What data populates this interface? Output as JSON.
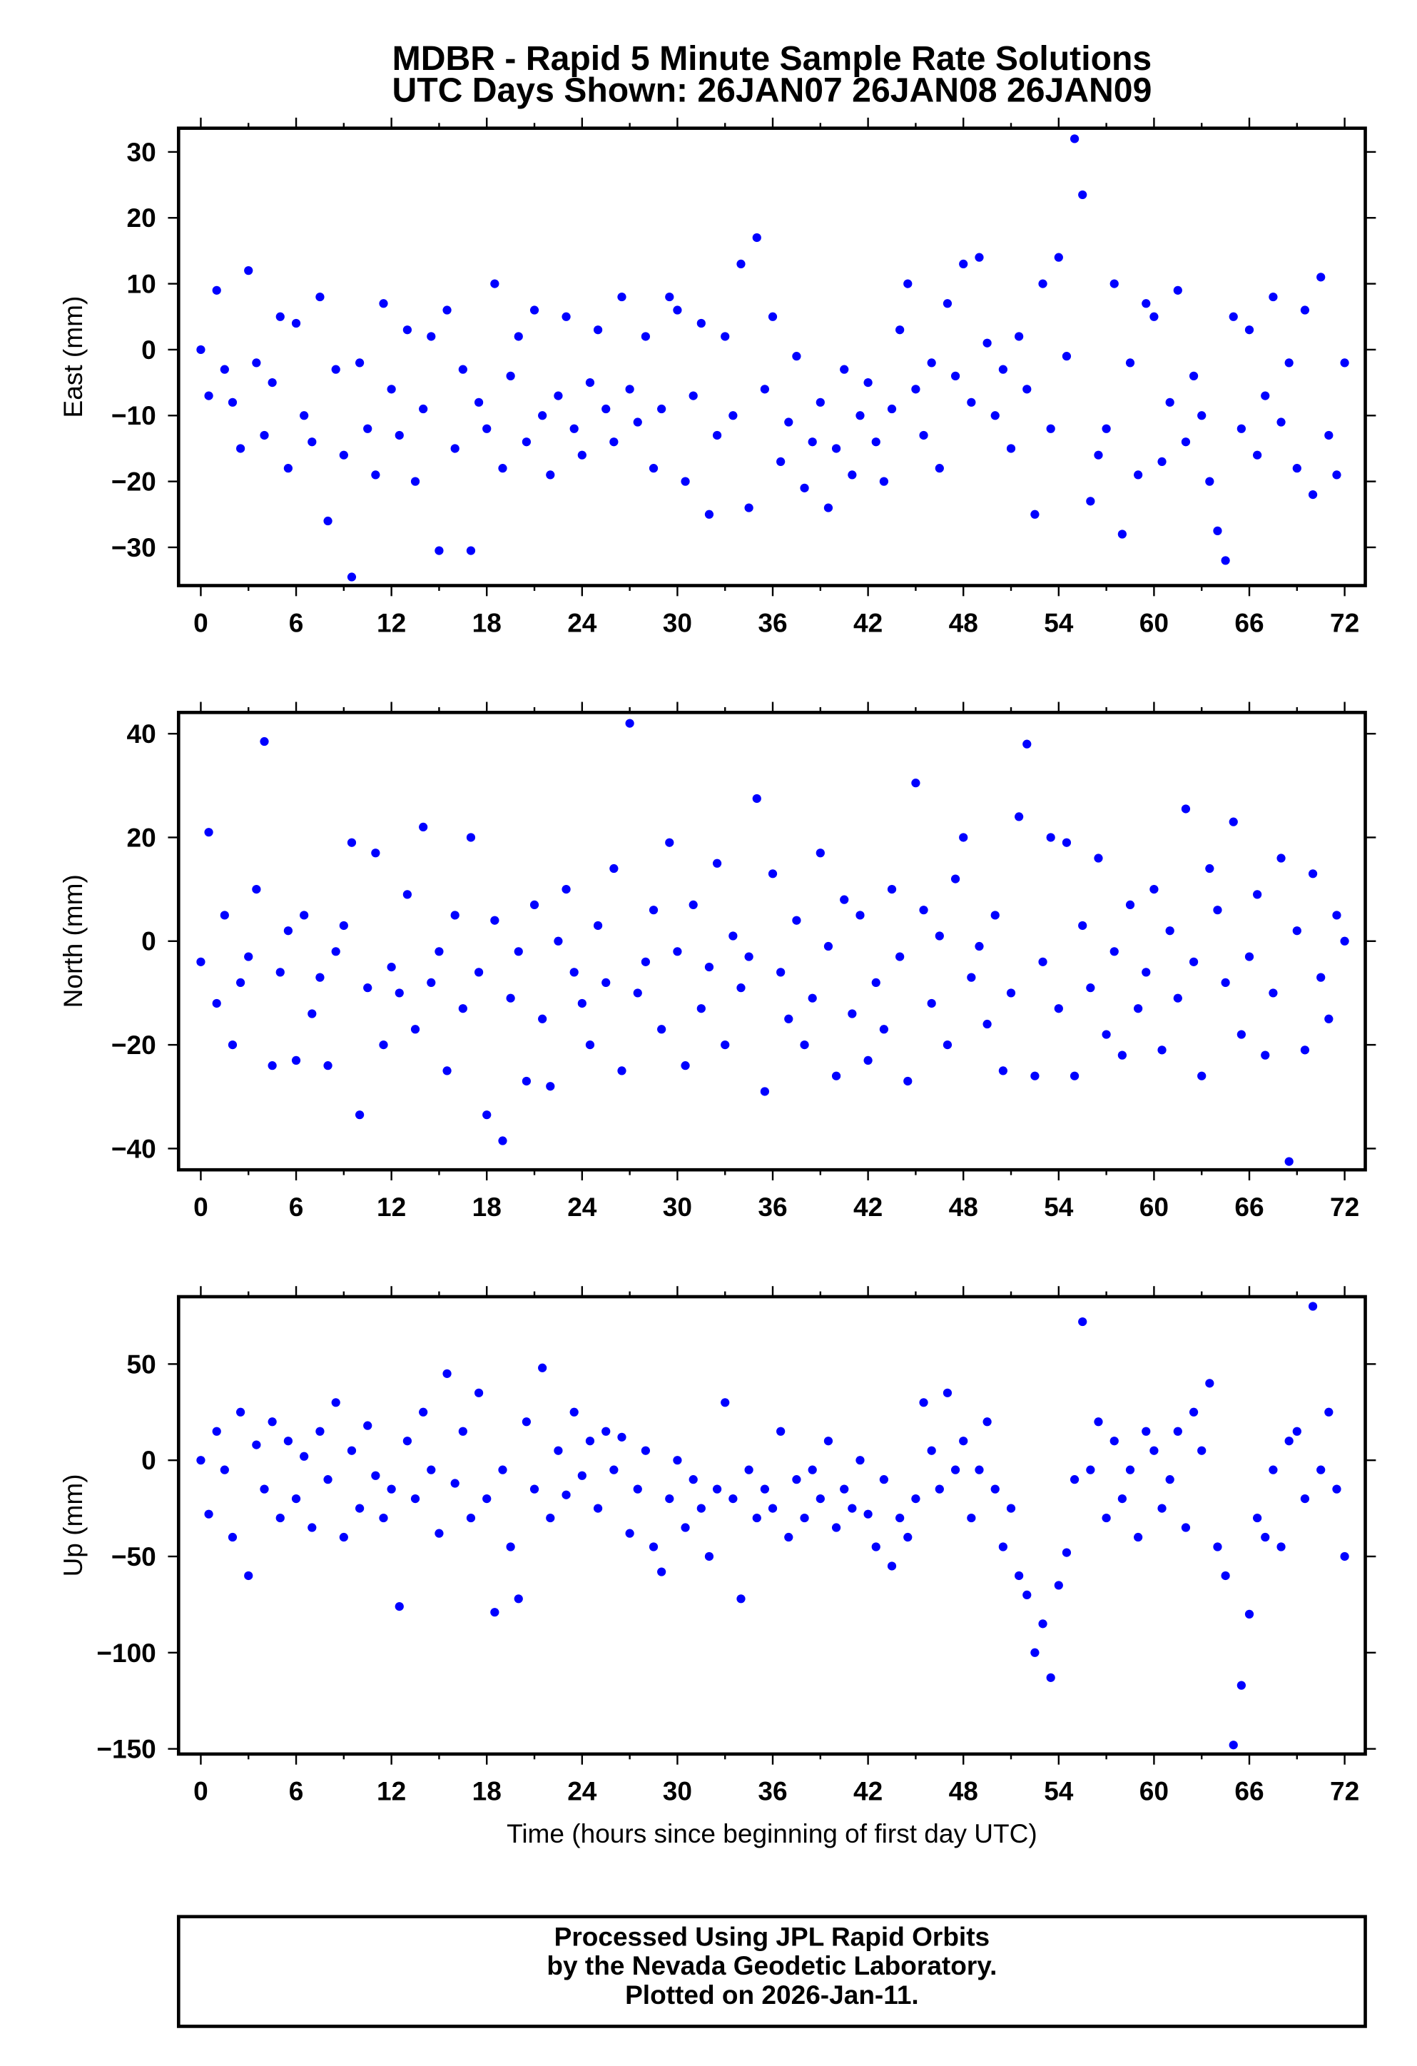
{
  "title": "MDBR - Rapid 5 Minute Sample Rate Solutions",
  "subtitle": "UTC Days Shown:  26JAN07 26JAN08 26JAN09",
  "footer": [
    "Processed Using JPL Rapid Orbits",
    "by the Nevada Geodetic Laboratory.",
    "Plotted on 2026-Jan-11."
  ],
  "colors": {
    "points": "#0000ff",
    "frame": "#000000"
  },
  "chart_data": [
    {
      "type": "scatter",
      "ylabel": "East (mm)",
      "xlabel": "",
      "xlim": [
        -1.4,
        73.3
      ],
      "ylim": [
        -35.8,
        33.6
      ],
      "xticks": [
        "0",
        "6",
        "12",
        "18",
        "24",
        "30",
        "36",
        "42",
        "48",
        "54",
        "60",
        "66",
        "72"
      ],
      "yticks": [
        {
          "v": 30,
          "label": "30"
        },
        {
          "v": 20,
          "label": "20"
        },
        {
          "v": 10,
          "label": "10"
        },
        {
          "v": 0,
          "label": "0"
        },
        {
          "v": -10,
          "label": "−10"
        },
        {
          "v": -20,
          "label": "−20"
        },
        {
          "v": -30,
          "label": "−30"
        }
      ],
      "x_step_hours": 0.5,
      "values": [
        0,
        -7,
        9,
        -3,
        -8,
        -15,
        12,
        -2,
        -13,
        -5,
        5,
        -18,
        4,
        -10,
        -14,
        8,
        -26,
        -3,
        -16,
        -34.5,
        -2,
        -12,
        -19,
        7,
        -6,
        -13,
        3,
        -20,
        -9,
        2,
        -30.5,
        6,
        -15,
        -3,
        -30.5,
        -8,
        -12,
        10,
        -18,
        -4,
        2,
        -14,
        6,
        -10,
        -19,
        -7,
        5,
        -12,
        -16,
        -5,
        3,
        -9,
        -14,
        8,
        -6,
        -11,
        2,
        -18,
        -9,
        8,
        6,
        -20,
        -7,
        4,
        -25,
        -13,
        2,
        -10,
        13,
        -24,
        17,
        -6,
        5,
        -17,
        -11,
        -1,
        -21,
        -14,
        -8,
        -24,
        -15,
        -3,
        -19,
        -10,
        -5,
        -14,
        -20,
        -9,
        3,
        10,
        -6,
        -13,
        -2,
        -18,
        7,
        -4,
        13,
        -8,
        14,
        1,
        -10,
        -3,
        -15,
        2,
        -6,
        -25,
        10,
        -12,
        14,
        -1,
        32,
        23.5,
        -23,
        -16,
        -12,
        10,
        -28,
        -2,
        -19,
        7,
        5,
        -17,
        -8,
        9,
        -14,
        -4,
        -10,
        -20,
        -27.5,
        -32,
        5,
        -12,
        3,
        -16,
        -7,
        8,
        -11,
        -2,
        -18,
        6,
        -22,
        11,
        -13,
        -19,
        -2
      ]
    },
    {
      "type": "scatter",
      "ylabel": "North (mm)",
      "xlabel": "",
      "xlim": [
        -1.4,
        73.3
      ],
      "ylim": [
        -44.1,
        44.1
      ],
      "xticks": [
        "0",
        "6",
        "12",
        "18",
        "24",
        "30",
        "36",
        "42",
        "48",
        "54",
        "60",
        "66",
        "72"
      ],
      "yticks": [
        {
          "v": 40,
          "label": "40"
        },
        {
          "v": 20,
          "label": "20"
        },
        {
          "v": 0,
          "label": "0"
        },
        {
          "v": -20,
          "label": "−20"
        },
        {
          "v": -40,
          "label": "−40"
        }
      ],
      "x_step_hours": 0.5,
      "values": [
        -4,
        21,
        -12,
        5,
        -20,
        -8,
        -3,
        10,
        38.5,
        -24,
        -6,
        2,
        -23,
        5,
        -14,
        -7,
        -24,
        -2,
        3,
        19,
        -33.5,
        -9,
        17,
        -20,
        -5,
        -10,
        9,
        -17,
        22,
        -8,
        -2,
        -25,
        5,
        -13,
        20,
        -6,
        -33.5,
        4,
        -38.5,
        -11,
        -2,
        -27,
        7,
        -15,
        -28,
        0,
        10,
        -6,
        -12,
        -20,
        3,
        -8,
        14,
        -25,
        42,
        -10,
        -4,
        6,
        -17,
        19,
        -2,
        -24,
        7,
        -13,
        -5,
        15,
        -20,
        1,
        -9,
        -3,
        27.5,
        -29,
        13,
        -6,
        -15,
        4,
        -20,
        -11,
        17,
        -1,
        -26,
        8,
        -14,
        5,
        -23,
        -8,
        -17,
        10,
        -3,
        -27,
        30.5,
        6,
        -12,
        1,
        -20,
        12,
        20,
        -7,
        -1,
        -16,
        5,
        -25,
        -10,
        24,
        38,
        -26,
        -4,
        20,
        -13,
        19,
        -26,
        3,
        -9,
        16,
        -18,
        -2,
        -22,
        7,
        -13,
        -6,
        10,
        -21,
        2,
        -11,
        25.5,
        -4,
        -26,
        14,
        6,
        -8,
        23,
        -18,
        -3,
        9,
        -22,
        -10,
        16,
        -42.5,
        2,
        -21,
        13,
        -7,
        -15,
        5,
        0
      ]
    },
    {
      "type": "scatter",
      "ylabel": "Up (mm)",
      "xlabel": "Time (hours since beginning of first day UTC)",
      "xlim": [
        -1.4,
        73.3
      ],
      "ylim": [
        -152.7,
        85
      ],
      "xticks": [
        "0",
        "6",
        "12",
        "18",
        "24",
        "30",
        "36",
        "42",
        "48",
        "54",
        "60",
        "66",
        "72"
      ],
      "yticks": [
        {
          "v": 50,
          "label": "50"
        },
        {
          "v": 0,
          "label": "0"
        },
        {
          "v": -50,
          "label": "−50"
        },
        {
          "v": -100,
          "label": "−100"
        },
        {
          "v": -150,
          "label": "−150"
        }
      ],
      "x_step_hours": 0.5,
      "values": [
        0,
        -28,
        15,
        -5,
        -40,
        25,
        -60,
        8,
        -15,
        20,
        -30,
        10,
        -20,
        2,
        -35,
        15,
        -10,
        30,
        -40,
        5,
        -25,
        18,
        -8,
        -30,
        -15,
        -76,
        10,
        -20,
        25,
        -5,
        -38,
        45,
        -12,
        15,
        -30,
        35,
        -20,
        -79,
        -5,
        -45,
        -72,
        20,
        -15,
        48,
        -30,
        5,
        -18,
        25,
        -8,
        10,
        -25,
        15,
        -5,
        12,
        -38,
        -15,
        5,
        -45,
        -58,
        -20,
        0,
        -35,
        -10,
        -25,
        -50,
        -15,
        30,
        -20,
        -72,
        -5,
        -30,
        -15,
        -25,
        15,
        -40,
        -10,
        -30,
        -5,
        -20,
        10,
        -35,
        -15,
        -25,
        0,
        -28,
        -45,
        -10,
        -55,
        -30,
        -40,
        -20,
        30,
        5,
        -15,
        35,
        -5,
        10,
        -30,
        -5,
        20,
        -15,
        -45,
        -25,
        -60,
        -70,
        -100,
        -85,
        -113,
        -65,
        -48,
        -10,
        72,
        -5,
        20,
        -30,
        10,
        -20,
        -5,
        -40,
        15,
        5,
        -25,
        -10,
        15,
        -35,
        25,
        5,
        40,
        -45,
        -60,
        -148,
        -117,
        -80,
        -30,
        -40,
        -5,
        -45,
        10,
        15,
        -20,
        80,
        -5,
        25,
        -15,
        -50
      ]
    }
  ]
}
